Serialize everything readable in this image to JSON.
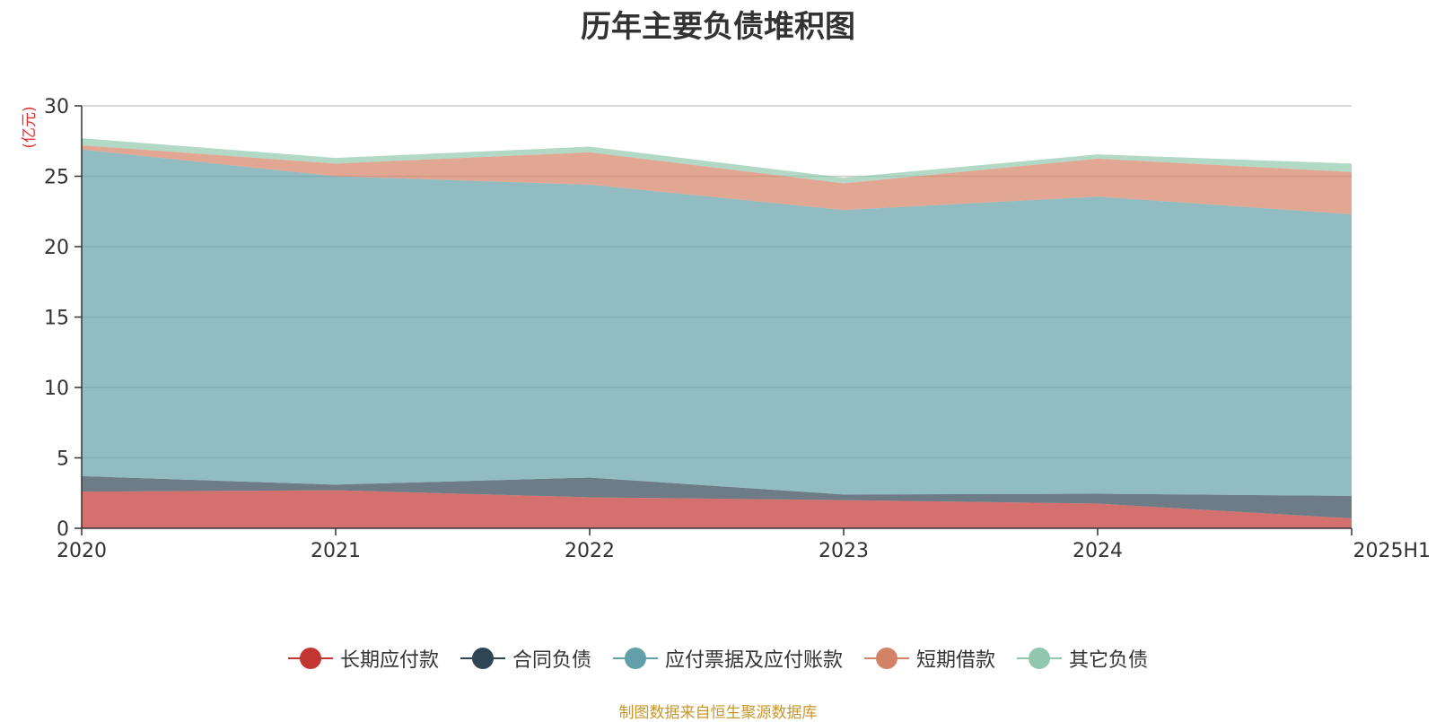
{
  "chart_data": {
    "type": "area",
    "stacked": true,
    "title": "历年主要负债堆积图",
    "unit_label": "(亿元)",
    "categories": [
      "2020",
      "2021",
      "2022",
      "2023",
      "2024",
      "2025H1"
    ],
    "ylim": [
      0,
      30
    ],
    "yticks": [
      0,
      5,
      10,
      15,
      20,
      25,
      30
    ],
    "series": [
      {
        "name": "长期应付款",
        "color": "#c23531",
        "values": [
          2.6,
          2.7,
          2.2,
          2.0,
          1.75,
          0.7
        ]
      },
      {
        "name": "合同负债",
        "color": "#2f4554",
        "values": [
          1.1,
          0.4,
          1.4,
          0.4,
          0.7,
          1.6
        ]
      },
      {
        "name": "应付票据及应付账款",
        "color": "#61a0a8",
        "values": [
          23.2,
          21.9,
          20.8,
          20.2,
          21.1,
          20.0
        ]
      },
      {
        "name": "短期借款",
        "color": "#d48265",
        "values": [
          0.3,
          0.9,
          2.3,
          1.9,
          2.7,
          3.0
        ]
      },
      {
        "name": "其它负债",
        "color": "#91c7ae",
        "values": [
          0.5,
          0.4,
          0.4,
          0.4,
          0.3,
          0.6
        ]
      }
    ],
    "legend_position": "bottom-center"
  },
  "footer": {
    "source": "制图数据来自恒生聚源数据库"
  }
}
